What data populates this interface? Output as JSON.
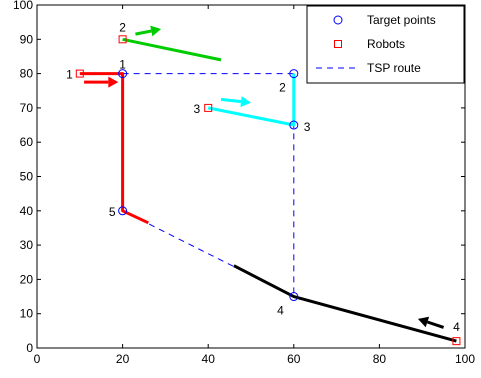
{
  "chart_data": {
    "type": "scatter",
    "xlim": [
      0,
      100
    ],
    "ylim": [
      0,
      100
    ],
    "x_ticks": [
      0,
      20,
      40,
      60,
      80,
      100
    ],
    "y_ticks": [
      0,
      10,
      20,
      30,
      40,
      50,
      60,
      70,
      80,
      90,
      100
    ],
    "grid": false,
    "legend": {
      "placement": "top-right",
      "entries": [
        {
          "label": "Target points",
          "marker": "circle",
          "color": "#0000ff"
        },
        {
          "label": "Robots",
          "marker": "square",
          "color": "#ff0000"
        },
        {
          "label": "TSP route",
          "marker": "dashed-line",
          "color": "#0000ff"
        }
      ]
    },
    "target_points": [
      {
        "label": "1",
        "x": 20,
        "y": 80
      },
      {
        "label": "2",
        "x": 60,
        "y": 80
      },
      {
        "label": "3",
        "x": 60,
        "y": 65
      },
      {
        "label": "4",
        "x": 60,
        "y": 15
      },
      {
        "label": "5",
        "x": 20,
        "y": 40
      }
    ],
    "robots": [
      {
        "label": "1",
        "x": 10,
        "y": 80,
        "color": "#ff0000"
      },
      {
        "label": "2",
        "x": 20,
        "y": 90,
        "color": "#00cc00"
      },
      {
        "label": "3",
        "x": 40,
        "y": 70,
        "color": "#00ffff"
      },
      {
        "label": "4",
        "x": 98,
        "y": 2,
        "color": "#000000"
      }
    ],
    "tsp_route": [
      [
        20,
        80
      ],
      [
        60,
        80
      ],
      [
        60,
        65
      ],
      [
        60,
        15
      ],
      [
        20,
        40
      ],
      [
        20,
        80
      ]
    ],
    "robot_paths": [
      {
        "robot": "1",
        "color": "#ff0000",
        "points": [
          [
            10,
            80
          ],
          [
            20,
            80
          ],
          [
            20,
            40
          ],
          [
            26,
            36.5
          ]
        ]
      },
      {
        "robot": "2",
        "color": "#00cc00",
        "points": [
          [
            20,
            90
          ],
          [
            43,
            84
          ]
        ]
      },
      {
        "robot": "3",
        "color": "#00ffff",
        "points": [
          [
            40,
            70
          ],
          [
            60,
            65
          ],
          [
            60,
            80
          ]
        ]
      },
      {
        "robot": "4",
        "color": "#000000",
        "points": [
          [
            98,
            2
          ],
          [
            60,
            15
          ],
          [
            46,
            24
          ]
        ]
      }
    ],
    "direction_arrows": [
      {
        "robot": "1",
        "color": "#ff0000",
        "from": [
          11,
          77.5
        ],
        "to": [
          19,
          77.5
        ]
      },
      {
        "robot": "2",
        "color": "#00cc00",
        "from": [
          23,
          91.5
        ],
        "to": [
          29,
          93
        ]
      },
      {
        "robot": "3",
        "color": "#00ffff",
        "from": [
          43,
          72.5
        ],
        "to": [
          50,
          71.5
        ]
      },
      {
        "robot": "4",
        "color": "#000000",
        "from": [
          95,
          6
        ],
        "to": [
          89,
          8.5
        ]
      }
    ]
  }
}
